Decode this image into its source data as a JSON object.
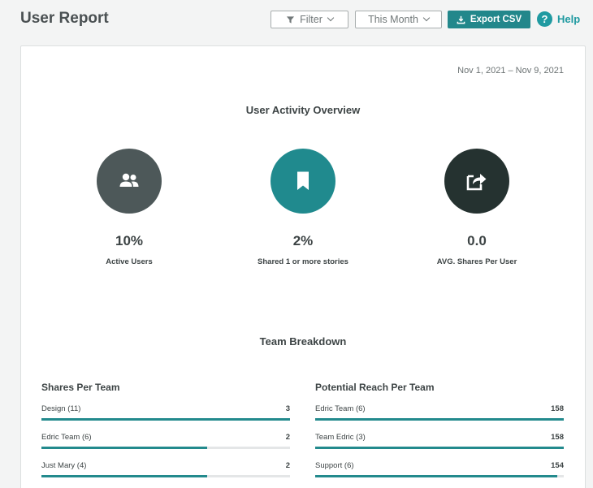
{
  "header": {
    "title": "User Report",
    "filter_label": "Filter",
    "period_label": "This Month",
    "export_label": "Export CSV",
    "help_label": "Help",
    "help_glyph": "?"
  },
  "report": {
    "date_range": "Nov 1, 2021 – Nov 9, 2021",
    "overview_title": "User Activity Overview",
    "stats": [
      {
        "value": "10%",
        "label": "Active Users",
        "icon": "users-icon",
        "color": "#4d5859"
      },
      {
        "value": "2%",
        "label": "Shared 1 or more stories",
        "icon": "bookmark-icon",
        "color": "#208a8e"
      },
      {
        "value": "0.0",
        "label": "AVG. Shares Per User",
        "icon": "share-icon",
        "color": "#253230"
      }
    ],
    "breakdown_title": "Team Breakdown",
    "shares_per_team": {
      "title": "Shares Per Team",
      "rows": [
        {
          "name": "Design (11)",
          "value": "3",
          "fraction": 1.0
        },
        {
          "name": "Edric Team (6)",
          "value": "2",
          "fraction": 0.667
        },
        {
          "name": "Just Mary (4)",
          "value": "2",
          "fraction": 0.667
        }
      ]
    },
    "reach_per_team": {
      "title": "Potential Reach Per Team",
      "rows": [
        {
          "name": "Edric Team (6)",
          "value": "158",
          "fraction": 1.0
        },
        {
          "name": "Team Edric (3)",
          "value": "158",
          "fraction": 1.0
        },
        {
          "name": "Support (6)",
          "value": "154",
          "fraction": 0.975
        }
      ]
    }
  },
  "colors": {
    "accent": "#22878b",
    "help": "#1f9aa1"
  }
}
